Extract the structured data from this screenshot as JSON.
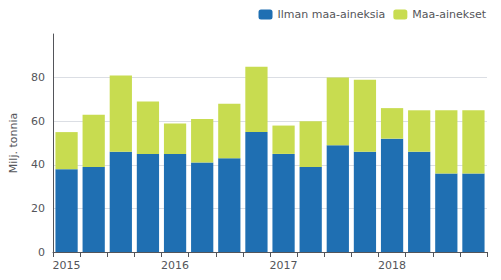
{
  "chart_data": {
    "type": "bar",
    "stacked": true,
    "categories": [
      "2015",
      null,
      null,
      null,
      "2016",
      null,
      null,
      null,
      "2017",
      null,
      null,
      null,
      "2018",
      null,
      null,
      null
    ],
    "series": [
      {
        "name": "Ilman maa-aineksia",
        "color": "#1f6fb2",
        "values": [
          38,
          39,
          46,
          45,
          45,
          41,
          43,
          55,
          45,
          39,
          49,
          46,
          52,
          46,
          36,
          36
        ]
      },
      {
        "name": "Maa-ainekset",
        "color": "#c8dc50",
        "values": [
          17,
          24,
          35,
          24,
          14,
          20,
          25,
          30,
          13,
          21,
          31,
          33,
          14,
          19,
          29,
          29
        ]
      }
    ],
    "ylabel": "Milj. tonnia",
    "ylim": [
      0,
      100
    ],
    "yticks": [
      0,
      20,
      40,
      60,
      80
    ],
    "grid": true,
    "legend": "upper right"
  }
}
